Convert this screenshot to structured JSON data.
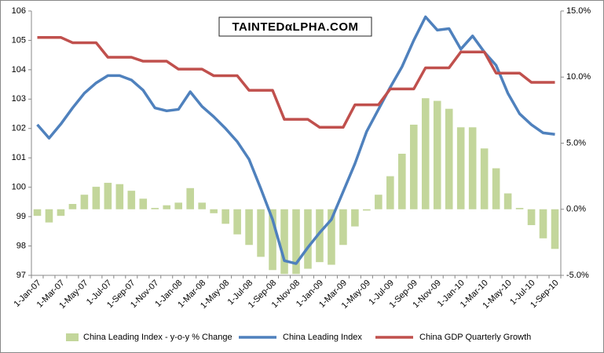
{
  "chart_data": {
    "type": "combo",
    "annotation": "TAINTEDαLPHA.COM",
    "categories": [
      "1-Jan-07",
      null,
      "1-Mar-07",
      null,
      "1-May-07",
      null,
      "1-Jul-07",
      null,
      "1-Sep-07",
      null,
      "1-Nov-07",
      null,
      "1-Jan-08",
      null,
      "1-Mar-08",
      null,
      "1-May-08",
      null,
      "1-Jul-08",
      null,
      "1-Sep-08",
      null,
      "1-Nov-08",
      null,
      "1-Jan-09",
      null,
      "1-Mar-09",
      null,
      "1-May-09",
      null,
      "1-Jul-09",
      null,
      "1-Sep-09",
      null,
      "1-Nov-09",
      null,
      "1-Jan-10",
      null,
      "1-Mar-10",
      null,
      "1-May-10",
      null,
      "1-Jul-10",
      null,
      "1-Sep-10"
    ],
    "ylim": [
      97,
      106
    ],
    "yticks": [
      97,
      98,
      99,
      100,
      101,
      102,
      103,
      104,
      105,
      106
    ],
    "y2lim": [
      -5,
      15
    ],
    "y2ticks": [
      {
        "value": -5,
        "label": "-5.0%"
      },
      {
        "value": 0,
        "label": "0.0%"
      },
      {
        "value": 5,
        "label": "5.0%"
      },
      {
        "value": 10,
        "label": "10.0%"
      },
      {
        "value": 15,
        "label": "15.0%"
      }
    ],
    "series": [
      {
        "name": "China Leading Index - y-o-y % Change",
        "type": "bar",
        "axis": "y2",
        "color": "#c3d69b",
        "values": [
          -0.5,
          -1.0,
          -0.5,
          0.4,
          1.1,
          1.7,
          2.0,
          1.9,
          1.4,
          0.8,
          0.1,
          0.3,
          0.5,
          1.6,
          0.5,
          -0.3,
          -1.1,
          -1.9,
          -2.7,
          -3.6,
          -4.6,
          -4.9,
          -4.9,
          -4.5,
          -4.0,
          -4.2,
          -2.7,
          -1.3,
          -0.1,
          1.1,
          2.5,
          4.2,
          6.4,
          8.4,
          8.2,
          7.6,
          6.2,
          6.2,
          4.6,
          3.1,
          1.2,
          0.1,
          -1.2,
          -2.2,
          -3.0
        ]
      },
      {
        "name": "China Leading Index",
        "type": "line",
        "axis": "y",
        "color": "#4f81bd",
        "values": [
          102.13,
          101.67,
          102.15,
          102.7,
          103.2,
          103.55,
          103.8,
          103.8,
          103.65,
          103.3,
          102.7,
          102.6,
          102.65,
          103.25,
          102.75,
          102.4,
          102.0,
          101.55,
          100.95,
          99.95,
          98.9,
          97.5,
          97.4,
          97.95,
          98.45,
          98.9,
          99.85,
          100.8,
          101.9,
          102.65,
          103.4,
          104.1,
          105.0,
          105.8,
          105.35,
          105.4,
          104.7,
          105.15,
          104.6,
          104.15,
          103.2,
          102.5,
          102.13,
          101.85,
          101.8
        ]
      },
      {
        "name": "China GDP Quarterly Growth",
        "type": "line",
        "axis": "y2",
        "color": "#c0504d",
        "values": [
          13.0,
          13.0,
          13.0,
          12.6,
          12.6,
          12.6,
          11.5,
          11.5,
          11.5,
          11.2,
          11.2,
          11.2,
          10.6,
          10.6,
          10.6,
          10.1,
          10.1,
          10.1,
          9.0,
          9.0,
          9.0,
          6.8,
          6.8,
          6.8,
          6.2,
          6.2,
          6.2,
          7.9,
          7.9,
          7.9,
          9.1,
          9.1,
          9.1,
          10.7,
          10.7,
          10.7,
          11.9,
          11.9,
          11.9,
          10.3,
          10.3,
          10.3,
          9.6,
          9.6,
          9.6
        ]
      }
    ]
  }
}
